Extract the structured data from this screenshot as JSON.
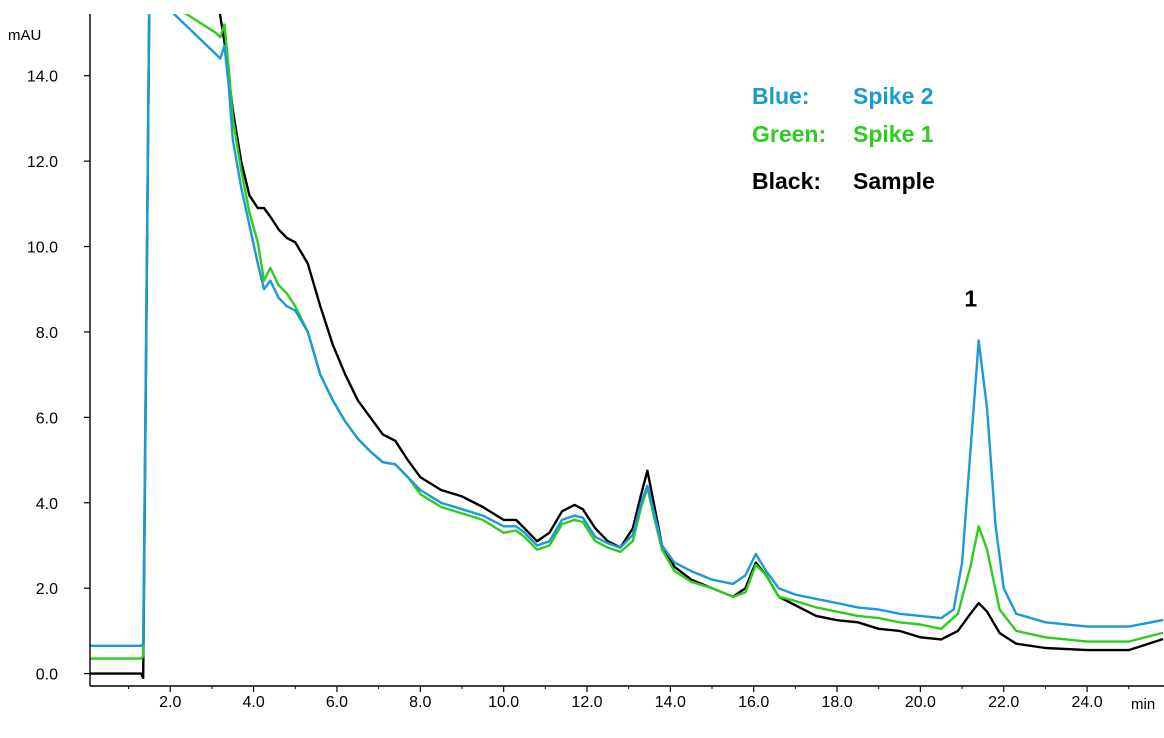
{
  "chart_data": {
    "type": "line",
    "ylabel": "mAU",
    "xlabel": "min",
    "xlim": [
      0.05,
      25.8
    ],
    "ylim": [
      -0.15,
      15.5
    ],
    "x_ticks": [
      2.0,
      4.0,
      6.0,
      8.0,
      10.0,
      12.0,
      14.0,
      16.0,
      18.0,
      20.0,
      22.0,
      24.0
    ],
    "x_tick_labels": [
      "2.0",
      "4.0",
      "6.0",
      "8.0",
      "10.0",
      "12.0",
      "14.0",
      "16.0",
      "18.0",
      "20.0",
      "22.0",
      "24.0"
    ],
    "y_ticks": [
      0.0,
      2.0,
      4.0,
      6.0,
      8.0,
      10.0,
      12.0,
      14.0
    ],
    "y_tick_labels": [
      "0.0",
      "2.0",
      "4.0",
      "6.0",
      "8.0",
      "10.0",
      "12.0",
      "14.0"
    ],
    "grid": false,
    "legend": {
      "placement": "top-right",
      "entries": [
        {
          "key": "Blue:",
          "value": "Spike 2",
          "color": "#1a9ad6"
        },
        {
          "key": "Green:",
          "value": "Spike 1",
          "color": "#2ecc1c"
        },
        {
          "key": "Black:",
          "value": "Sample",
          "color": "#000000"
        }
      ]
    },
    "annotations": [
      {
        "text": "1",
        "x": 21.4,
        "y": 8.6
      }
    ],
    "series": [
      {
        "color": "#000000",
        "x": [
          0.05,
          1.0,
          1.3,
          1.35,
          1.5,
          3.1,
          3.3,
          3.5,
          3.7,
          3.9,
          4.1,
          4.25,
          4.4,
          4.6,
          4.8,
          5.0,
          5.3,
          5.6,
          5.9,
          6.2,
          6.5,
          6.8,
          7.1,
          7.4,
          7.7,
          8.0,
          8.5,
          9.0,
          9.5,
          10.0,
          10.3,
          10.5,
          10.8,
          11.1,
          11.4,
          11.7,
          11.9,
          12.2,
          12.5,
          12.8,
          13.1,
          13.3,
          13.45,
          13.6,
          13.8,
          14.1,
          14.5,
          15.0,
          15.5,
          15.8,
          16.05,
          16.3,
          16.6,
          17.0,
          17.5,
          18.0,
          18.5,
          19.0,
          19.5,
          20.0,
          20.5,
          20.9,
          21.2,
          21.4,
          21.6,
          21.9,
          22.3,
          23.0,
          24.0,
          25.0,
          25.8
        ],
        "y": [
          0.0,
          0.0,
          0.0,
          -0.1,
          16.0,
          16.0,
          14.8,
          13.2,
          12.0,
          11.2,
          10.9,
          10.9,
          10.7,
          10.4,
          10.2,
          10.1,
          9.6,
          8.6,
          7.7,
          7.0,
          6.4,
          6.0,
          5.6,
          5.45,
          5.0,
          4.6,
          4.3,
          4.15,
          3.9,
          3.6,
          3.6,
          3.4,
          3.1,
          3.3,
          3.8,
          3.95,
          3.85,
          3.4,
          3.1,
          2.95,
          3.4,
          4.2,
          4.75,
          4.0,
          3.0,
          2.5,
          2.2,
          2.0,
          1.8,
          2.0,
          2.6,
          2.3,
          1.8,
          1.6,
          1.35,
          1.25,
          1.2,
          1.05,
          1.0,
          0.85,
          0.8,
          1.0,
          1.4,
          1.65,
          1.45,
          0.95,
          0.7,
          0.6,
          0.55,
          0.55,
          0.8
        ]
      },
      {
        "color": "#2ecc1c",
        "x": [
          0.05,
          1.0,
          1.3,
          1.35,
          1.5,
          3.1,
          3.2,
          3.3,
          3.4,
          3.5,
          3.7,
          3.9,
          4.1,
          4.25,
          4.4,
          4.6,
          4.8,
          5.0,
          5.3,
          5.6,
          5.9,
          6.2,
          6.5,
          6.8,
          7.1,
          7.4,
          7.7,
          8.0,
          8.5,
          9.0,
          9.5,
          10.0,
          10.3,
          10.5,
          10.8,
          11.1,
          11.4,
          11.7,
          11.9,
          12.2,
          12.5,
          12.8,
          13.1,
          13.3,
          13.45,
          13.6,
          13.8,
          14.1,
          14.5,
          15.0,
          15.5,
          15.8,
          16.05,
          16.3,
          16.6,
          17.0,
          17.5,
          18.0,
          18.5,
          19.0,
          19.5,
          20.0,
          20.5,
          20.9,
          21.2,
          21.4,
          21.6,
          21.9,
          22.3,
          23.0,
          24.0,
          25.0,
          25.8
        ],
        "y": [
          0.35,
          0.35,
          0.35,
          0.4,
          16.0,
          15.0,
          14.9,
          15.2,
          14.2,
          13.0,
          11.8,
          10.8,
          10.1,
          9.2,
          9.5,
          9.1,
          8.9,
          8.6,
          8.0,
          7.0,
          6.4,
          5.9,
          5.5,
          5.2,
          4.95,
          4.9,
          4.6,
          4.2,
          3.9,
          3.75,
          3.6,
          3.3,
          3.35,
          3.2,
          2.9,
          3.0,
          3.5,
          3.6,
          3.55,
          3.1,
          2.95,
          2.85,
          3.1,
          3.9,
          4.35,
          3.7,
          2.9,
          2.4,
          2.15,
          2.0,
          1.8,
          1.9,
          2.55,
          2.3,
          1.8,
          1.7,
          1.55,
          1.45,
          1.35,
          1.3,
          1.2,
          1.15,
          1.05,
          1.4,
          2.5,
          3.45,
          2.9,
          1.5,
          1.0,
          0.85,
          0.75,
          0.75,
          0.95
        ]
      },
      {
        "color": "#1a9ad6",
        "x": [
          0.05,
          1.0,
          1.3,
          1.35,
          1.5,
          3.1,
          3.2,
          3.3,
          3.4,
          3.5,
          3.7,
          3.9,
          4.1,
          4.25,
          4.4,
          4.6,
          4.8,
          5.0,
          5.3,
          5.6,
          5.9,
          6.2,
          6.5,
          6.8,
          7.1,
          7.4,
          7.7,
          8.0,
          8.5,
          9.0,
          9.5,
          10.0,
          10.3,
          10.5,
          10.8,
          11.1,
          11.4,
          11.7,
          11.9,
          12.2,
          12.5,
          12.8,
          13.1,
          13.3,
          13.45,
          13.6,
          13.8,
          14.1,
          14.5,
          15.0,
          15.5,
          15.8,
          16.05,
          16.3,
          16.6,
          17.0,
          17.5,
          18.0,
          18.5,
          19.0,
          19.5,
          20.0,
          20.5,
          20.8,
          21.0,
          21.2,
          21.4,
          21.6,
          21.8,
          22.0,
          22.3,
          23.0,
          24.0,
          25.0,
          25.8
        ],
        "y": [
          0.65,
          0.65,
          0.65,
          0.7,
          16.0,
          14.5,
          14.4,
          14.7,
          13.8,
          12.5,
          11.4,
          10.5,
          9.6,
          9.0,
          9.2,
          8.8,
          8.6,
          8.5,
          8.0,
          7.0,
          6.4,
          5.9,
          5.5,
          5.2,
          4.95,
          4.9,
          4.6,
          4.3,
          4.0,
          3.85,
          3.7,
          3.45,
          3.45,
          3.3,
          3.0,
          3.1,
          3.6,
          3.7,
          3.65,
          3.2,
          3.05,
          2.95,
          3.25,
          4.0,
          4.4,
          3.8,
          3.0,
          2.6,
          2.4,
          2.2,
          2.1,
          2.3,
          2.8,
          2.4,
          2.0,
          1.85,
          1.75,
          1.65,
          1.55,
          1.5,
          1.4,
          1.35,
          1.3,
          1.5,
          2.6,
          5.2,
          7.8,
          6.2,
          3.5,
          2.0,
          1.4,
          1.2,
          1.1,
          1.1,
          1.25
        ]
      }
    ]
  }
}
